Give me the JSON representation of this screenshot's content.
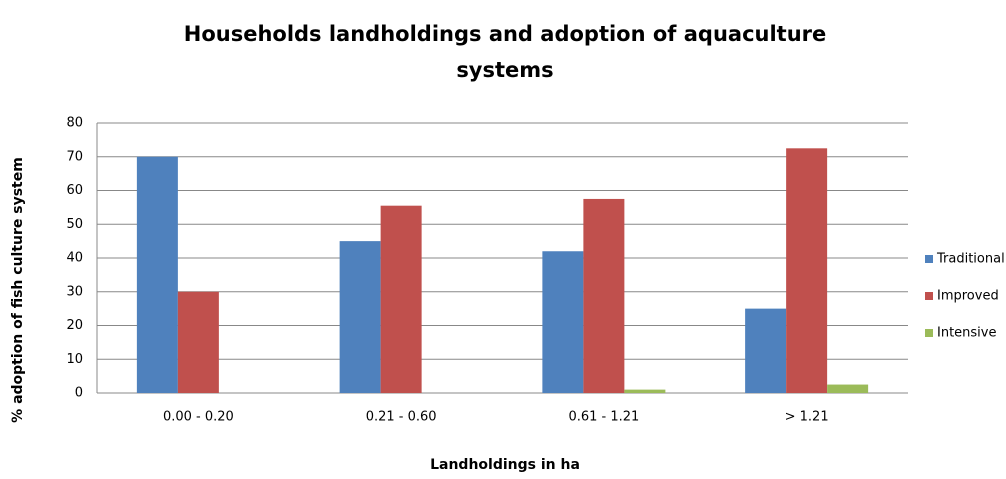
{
  "chart_data": {
    "type": "bar",
    "title": "Households landholdings and adoption of aquaculture systems",
    "x_label": "Landholdings in ha",
    "y_label": "% adoption of fish culture system",
    "categories": [
      "0.00 - 0.20",
      "0.21 - 0.60",
      "0.61 - 1.21",
      "> 1.21"
    ],
    "series": [
      {
        "name": "Traditional",
        "color": "#4f81bd",
        "values": [
          70,
          45,
          42,
          25
        ]
      },
      {
        "name": "Improved",
        "color": "#c0504d",
        "values": [
          30,
          55.5,
          57.5,
          72.5
        ]
      },
      {
        "name": "Intensive",
        "color": "#9bbb59",
        "values": [
          0,
          0,
          1,
          2.5
        ]
      }
    ],
    "ylim": [
      0,
      80
    ],
    "yticks": [
      0,
      10,
      20,
      30,
      40,
      50,
      60,
      70,
      80
    ],
    "grid": true,
    "legend": "right"
  }
}
